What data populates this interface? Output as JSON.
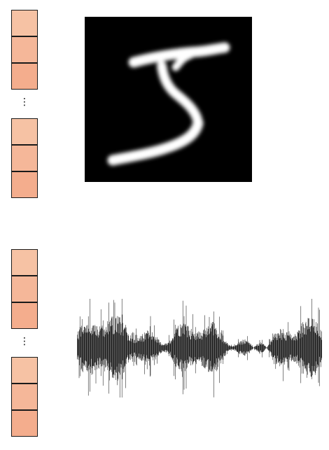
{
  "vector_a": {
    "top_cells": [
      "#f6c2a4",
      "#f5b799",
      "#f4ad8d"
    ],
    "bottom_cells": [
      "#f6c2a4",
      "#f5b799",
      "#f4ad8d"
    ],
    "ellipsis": "⋮"
  },
  "vector_b": {
    "top_cells": [
      "#f6c2a4",
      "#f5b799",
      "#f4ad8d"
    ],
    "bottom_cells": [
      "#f6c2a4",
      "#f5b799",
      "#f4ad8d"
    ],
    "ellipsis": "⋮"
  },
  "digit_image": {
    "digit": "5",
    "background": "#000000",
    "stroke": "#ffffff"
  },
  "waveform": {
    "color": "#000000"
  }
}
